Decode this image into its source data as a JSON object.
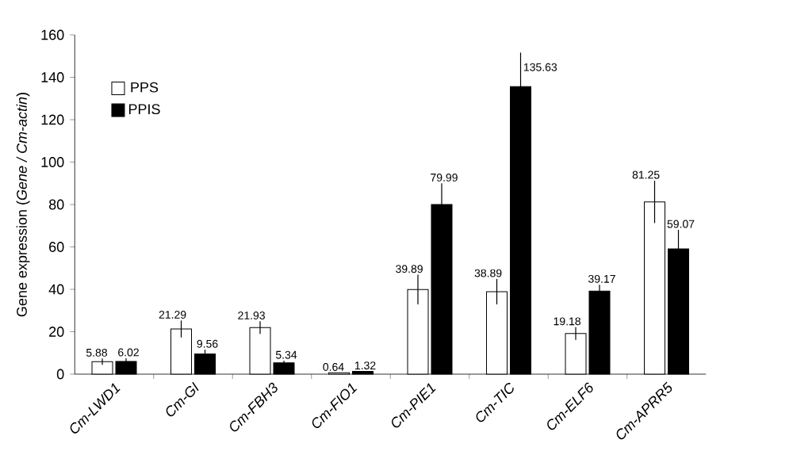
{
  "chart_data": {
    "type": "bar",
    "ylabel": "Gene expression (*Gene / Cm-actin*)",
    "categories": [
      "Cm-LWD1",
      "Cm-GI",
      "Cm-FBH3",
      "Cm-FIO1",
      "Cm-PIE1",
      "Cm-TIC",
      "Cm-ELF6",
      "Cm-APRR5"
    ],
    "series": [
      {
        "name": "PPS",
        "color": "#ffffff",
        "values": [
          5.88,
          21.29,
          21.93,
          0.64,
          39.89,
          38.89,
          19.18,
          81.25
        ],
        "errors": [
          1.5,
          4,
          3,
          null,
          7,
          6,
          3,
          10
        ],
        "value_labels": [
          "5.88",
          "21.29",
          "21.93",
          "0.64",
          "39.89",
          "38.89",
          "19.18",
          "81.25"
        ]
      },
      {
        "name": "PPIS",
        "color": "#000000",
        "values": [
          6.02,
          9.56,
          5.34,
          1.32,
          79.99,
          135.63,
          39.17,
          59.07
        ],
        "errors": [
          1.5,
          2,
          1,
          null,
          10,
          16,
          3,
          9
        ],
        "value_labels": [
          "6.02",
          "9.56",
          "5.34",
          "1.32",
          "79.99",
          "135.63",
          "39.17",
          "59.07"
        ]
      }
    ],
    "ylim": [
      0,
      160
    ],
    "yticks": [
      0,
      20,
      40,
      60,
      80,
      100,
      120,
      140,
      160
    ],
    "legend": "top left",
    "grid": false
  }
}
